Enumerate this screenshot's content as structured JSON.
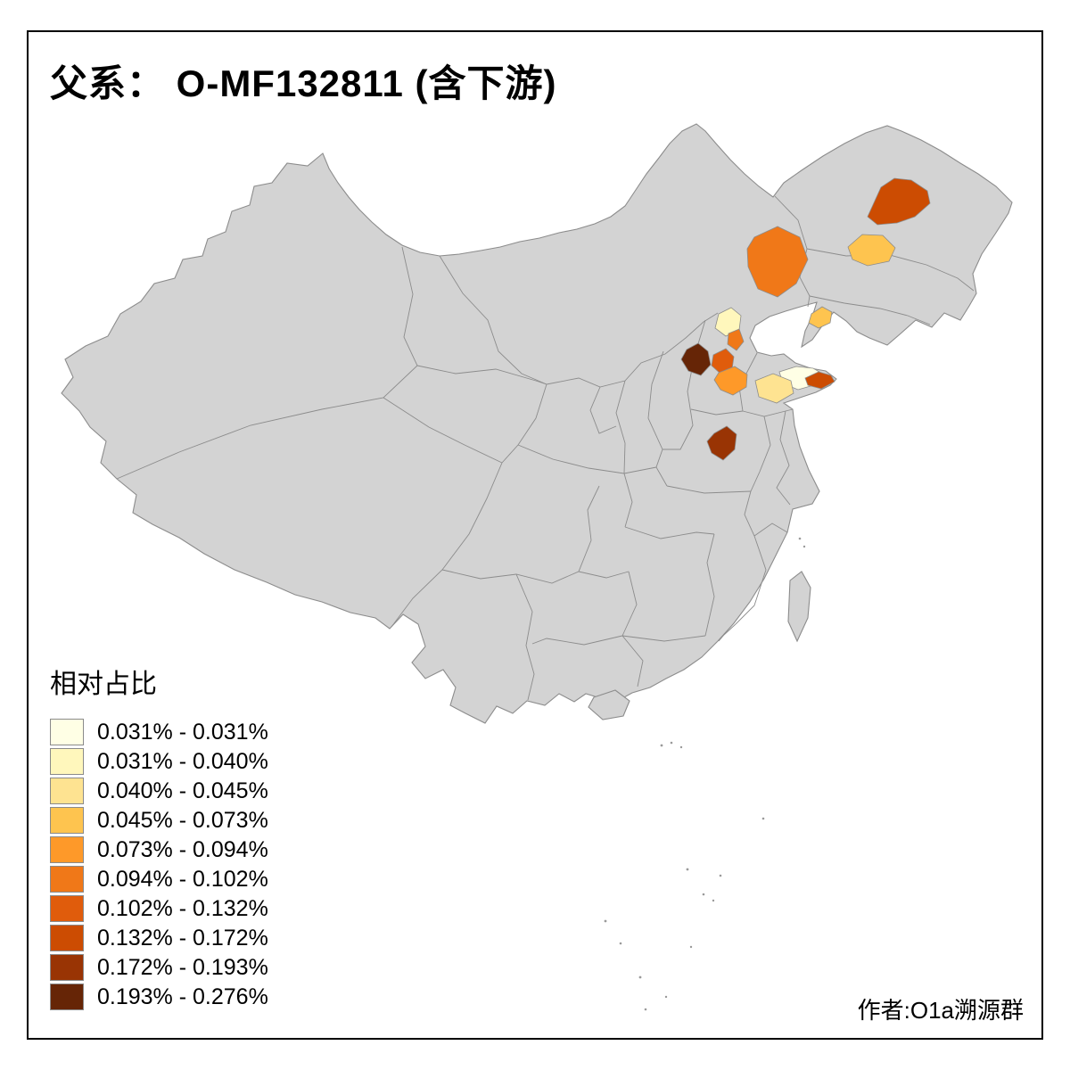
{
  "title": "父系： O-MF132811 (含下游)",
  "legend": {
    "title": "相对占比",
    "items": [
      {
        "label": "0.031% - 0.031%",
        "color": "#FFFFE5"
      },
      {
        "label": "0.031% - 0.040%",
        "color": "#FFF7BC"
      },
      {
        "label": "0.040% - 0.045%",
        "color": "#FEE391"
      },
      {
        "label": "0.045% - 0.073%",
        "color": "#FEC44F"
      },
      {
        "label": "0.073% - 0.094%",
        "color": "#FE9929"
      },
      {
        "label": "0.094% - 0.102%",
        "color": "#F07818"
      },
      {
        "label": "0.102% - 0.132%",
        "color": "#E05C0C"
      },
      {
        "label": "0.132% - 0.172%",
        "color": "#CC4C02"
      },
      {
        "label": "0.172% - 0.193%",
        "color": "#993404"
      },
      {
        "label": "0.193% - 0.276%",
        "color": "#662506"
      }
    ]
  },
  "attribution": "作者:O1a溯源群",
  "map": {
    "land_fill": "#D3D3D3",
    "border_color": "#8C8C8C",
    "island_dot_color": "#9A9A9A",
    "regions": [
      {
        "name": "heilongjiang-west",
        "color": "#CC4C02"
      },
      {
        "name": "inner-mongolia-southeast",
        "color": "#F07818"
      },
      {
        "name": "jilin-central",
        "color": "#FEC44F"
      },
      {
        "name": "beijing",
        "color": "#FFF7BC"
      },
      {
        "name": "hebei-langfang-strip",
        "color": "#F07818"
      },
      {
        "name": "liaoning-bayhead",
        "color": "#FEC44F"
      },
      {
        "name": "hebei-west",
        "color": "#662506"
      },
      {
        "name": "hebei-central",
        "color": "#E05C0C"
      },
      {
        "name": "hebei-south",
        "color": "#FE9929"
      },
      {
        "name": "shandong-northwest",
        "color": "#FFFFE5"
      },
      {
        "name": "shandong-west",
        "color": "#FEE391"
      },
      {
        "name": "shandong-east-tip",
        "color": "#CC4C02"
      },
      {
        "name": "henan-north",
        "color": "#993404"
      }
    ]
  }
}
